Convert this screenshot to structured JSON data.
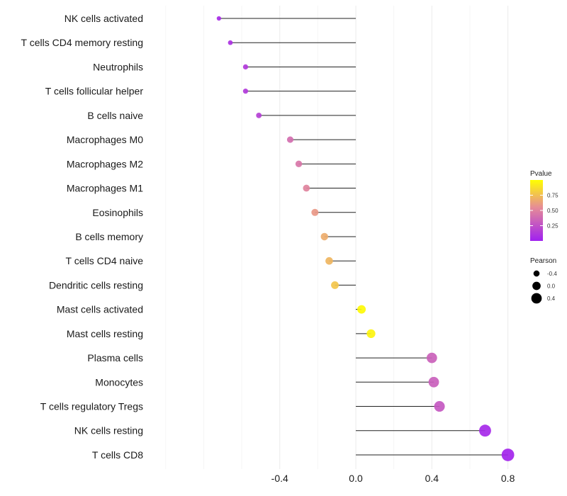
{
  "chart_data": {
    "type": "lollipop",
    "title": "",
    "xlabel": "",
    "ylabel": "",
    "xlim": [
      -1.07,
      0.82
    ],
    "x_ticks": [
      -0.4,
      0.0,
      0.4,
      0.8
    ],
    "x_tick_labels": [
      "-0.4",
      "0.0",
      "0.4",
      "0.8"
    ],
    "grid": true,
    "categories": [
      "NK cells activated",
      "T cells CD4 memory resting",
      "Neutrophils",
      "T cells follicular helper",
      "B cells naive",
      "Macrophages M0",
      "Macrophages M2",
      "Macrophages M1",
      "Eosinophils",
      "B cells memory",
      "T cells CD4 naive",
      "Dendritic cells resting",
      "Mast cells activated",
      "Mast cells resting",
      "Plasma cells",
      "Monocytes",
      "T cells regulatory  Tregs",
      "NK cells resting",
      "T cells CD8"
    ],
    "pearson": [
      -0.72,
      -0.66,
      -0.58,
      -0.58,
      -0.51,
      -0.345,
      -0.3,
      -0.26,
      -0.215,
      -0.165,
      -0.14,
      -0.11,
      0.03,
      0.08,
      0.4,
      0.41,
      0.44,
      0.68,
      0.8
    ],
    "pvalue": [
      0.05,
      0.08,
      0.12,
      0.12,
      0.15,
      0.36,
      0.4,
      0.46,
      0.55,
      0.64,
      0.68,
      0.75,
      0.98,
      0.95,
      0.3,
      0.29,
      0.26,
      0.04,
      0.02
    ],
    "legend_position": "right",
    "legends": {
      "color": {
        "title": "Pvalue",
        "ticks": [
          0.25,
          0.5,
          0.75
        ],
        "tick_labels": [
          "0.25",
          "0.50",
          "0.75"
        ],
        "range": [
          0.0,
          1.0
        ],
        "low_color": "#a020f0",
        "high_color": "#ffff00"
      },
      "size": {
        "title": "Pearson",
        "values": [
          -0.4,
          0.0,
          0.4
        ],
        "labels": [
          "-0.4",
          "0.0",
          "0.4"
        ]
      }
    }
  }
}
